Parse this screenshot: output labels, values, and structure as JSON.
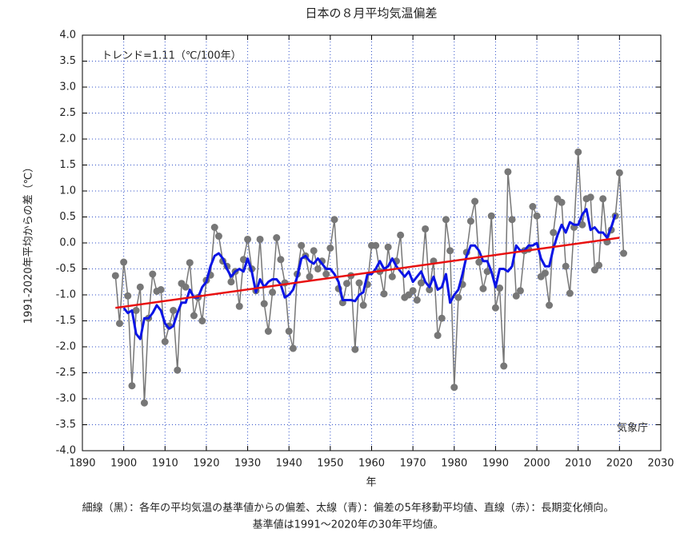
{
  "chart_data": {
    "type": "line",
    "title": "日本の８月平均気温偏差",
    "y_label": "1991-2020年平均からの差（℃）",
    "x_label": "年",
    "annotations": [
      "トレンド=1.11（℃/100年）",
      "気象庁"
    ],
    "notes": [
      "細線（黒）：各年の平均気温の基準値からの偏差、太線（青）：偏差の5年移動平均値、直線（赤）：長期変化傾向。",
      "基準値は1991～2020年の30年平均値。"
    ],
    "x": [
      1898,
      1899,
      1900,
      1901,
      1902,
      1903,
      1904,
      1905,
      1906,
      1907,
      1908,
      1909,
      1910,
      1911,
      1912,
      1913,
      1914,
      1915,
      1916,
      1917,
      1918,
      1919,
      1920,
      1921,
      1922,
      1923,
      1924,
      1925,
      1926,
      1927,
      1928,
      1929,
      1930,
      1931,
      1932,
      1933,
      1934,
      1935,
      1936,
      1937,
      1938,
      1939,
      1940,
      1941,
      1942,
      1943,
      1944,
      1945,
      1946,
      1947,
      1948,
      1949,
      1950,
      1951,
      1952,
      1953,
      1954,
      1955,
      1956,
      1957,
      1958,
      1959,
      1960,
      1961,
      1962,
      1963,
      1964,
      1965,
      1966,
      1967,
      1968,
      1969,
      1970,
      1971,
      1972,
      1973,
      1974,
      1975,
      1976,
      1977,
      1978,
      1979,
      1980,
      1981,
      1982,
      1983,
      1984,
      1985,
      1986,
      1987,
      1988,
      1989,
      1990,
      1991,
      1992,
      1993,
      1994,
      1995,
      1996,
      1997,
      1998,
      1999,
      2000,
      2001,
      2002,
      2003,
      2004,
      2005,
      2006,
      2007,
      2008,
      2009,
      2010,
      2011,
      2012,
      2013,
      2014,
      2015,
      2016,
      2017,
      2018,
      2019,
      2020,
      2021
    ],
    "series": [
      {
        "color": "#777777",
        "markers": true,
        "width": 1.5,
        "values": [
          -0.63,
          -1.55,
          -0.37,
          -1.02,
          -2.75,
          -1.3,
          -0.85,
          -3.08,
          -1.45,
          -0.6,
          -0.93,
          -0.9,
          -1.9,
          -1.6,
          -1.3,
          -2.45,
          -0.78,
          -0.85,
          -0.38,
          -1.4,
          -1.05,
          -1.5,
          -0.72,
          -0.62,
          0.3,
          0.13,
          -0.35,
          -0.45,
          -0.75,
          -0.55,
          -1.22,
          -0.32,
          0.07,
          -0.5,
          -0.92,
          0.07,
          -1.17,
          -1.7,
          -0.95,
          0.1,
          -0.32,
          -0.77,
          -1.7,
          -2.03,
          -0.6,
          -0.05,
          -0.25,
          -0.65,
          -0.15,
          -0.5,
          -0.35,
          -0.6,
          -0.1,
          0.45,
          -0.88,
          -1.15,
          -0.78,
          -0.63,
          -2.05,
          -0.77,
          -1.2,
          -0.8,
          -0.05,
          -0.05,
          -0.55,
          -0.98,
          -0.08,
          -0.65,
          -0.35,
          0.15,
          -1.05,
          -1.0,
          -0.92,
          -1.1,
          -0.77,
          0.27,
          -0.9,
          -0.35,
          -1.78,
          -1.45,
          0.45,
          -0.15,
          -2.78,
          -1.05,
          -0.8,
          -0.18,
          0.42,
          0.8,
          -0.37,
          -0.88,
          -0.55,
          0.52,
          -1.25,
          -0.87,
          -2.37,
          1.37,
          0.45,
          -1.02,
          -0.92,
          -0.15,
          -0.12,
          0.7,
          0.52,
          -0.65,
          -0.58,
          -1.2,
          0.2,
          0.85,
          0.78,
          -0.45,
          -0.97,
          0.3,
          1.75,
          0.35,
          0.85,
          0.88,
          -0.52,
          -0.43,
          0.85,
          0.02,
          0.25,
          0.52,
          1.35,
          -0.2
        ]
      },
      {
        "color": "#0a14e6",
        "markers": false,
        "width": 3,
        "values": [
          null,
          null,
          -1.25,
          -1.35,
          -1.3,
          -1.75,
          -1.85,
          -1.45,
          -1.45,
          -1.35,
          -1.2,
          -1.3,
          -1.55,
          -1.65,
          -1.6,
          -1.35,
          -1.15,
          -1.15,
          -0.9,
          -1.05,
          -1.05,
          -0.85,
          -0.75,
          -0.45,
          -0.25,
          -0.2,
          -0.3,
          -0.5,
          -0.65,
          -0.55,
          -0.5,
          -0.55,
          -0.3,
          -0.55,
          -0.95,
          -0.7,
          -0.85,
          -0.75,
          -0.7,
          -0.7,
          -0.8,
          -1.05,
          -1.0,
          -0.9,
          -0.65,
          -0.3,
          -0.25,
          -0.35,
          -0.4,
          -0.3,
          -0.4,
          -0.5,
          -0.5,
          -0.6,
          -0.75,
          -1.1,
          -1.1,
          -1.1,
          -1.12,
          -1.0,
          -0.95,
          -0.6,
          -0.6,
          -0.5,
          -0.35,
          -0.5,
          -0.45,
          -0.3,
          -0.45,
          -0.55,
          -0.65,
          -0.55,
          -0.75,
          -0.65,
          -0.55,
          -0.75,
          -0.85,
          -0.65,
          -0.9,
          -0.85,
          -0.6,
          -1.15,
          -1.0,
          -0.9,
          -0.6,
          -0.25,
          -0.05,
          -0.05,
          -0.15,
          -0.35,
          -0.35,
          -0.55,
          -0.85,
          -0.5,
          -0.5,
          -0.55,
          -0.45,
          -0.05,
          -0.15,
          -0.15,
          -0.05,
          -0.05,
          0.0,
          -0.3,
          -0.45,
          -0.45,
          -0.1,
          0.15,
          0.35,
          0.2,
          0.4,
          0.35,
          0.35,
          0.55,
          0.65,
          0.25,
          0.3,
          0.2,
          0.2,
          0.1,
          0.3,
          0.55,
          null,
          null
        ]
      }
    ],
    "trend": {
      "color": "#e81010",
      "x": [
        1898,
        2020
      ],
      "values": [
        -1.25,
        0.1
      ]
    },
    "xlim": [
      1890,
      2030
    ],
    "xticks": [
      1890,
      1900,
      1910,
      1920,
      1930,
      1940,
      1950,
      1960,
      1970,
      1980,
      1990,
      2000,
      2010,
      2020,
      2030
    ],
    "ylim": [
      -4,
      4
    ],
    "yticks": [
      {
        "value": -4,
        "label": "-4.0"
      },
      -3.5,
      {
        "value": -3,
        "label": "-3.0"
      },
      -2.5,
      {
        "value": -2,
        "label": "-2.0"
      },
      -1.5,
      {
        "value": -1,
        "label": "-1.0"
      },
      -0.5,
      {
        "value": 0,
        "label": "0.0"
      },
      0.5,
      {
        "value": 1,
        "label": "1.0"
      },
      1.5,
      {
        "value": 2,
        "label": "2.0"
      },
      2.5,
      {
        "value": 3,
        "label": "3.0"
      },
      3.5,
      {
        "value": 4,
        "label": "4.0"
      }
    ],
    "grid": true,
    "grid_color": "#3050c8"
  }
}
